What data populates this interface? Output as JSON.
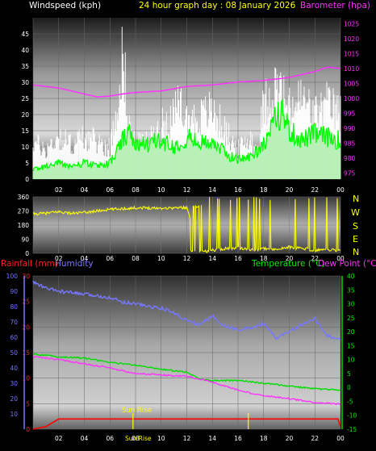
{
  "header": {
    "windspeed_label": "Windspeed (kph)",
    "title": "24 hour graph day : 08 January 2026",
    "barometer_label": "Barometer (hpa)"
  },
  "colors": {
    "background": "#000000",
    "wind_gust": "#ffffff",
    "wind_avg": "#00ff00",
    "wind_fill": "#b8f0b8",
    "barometer": "#ff33ff",
    "direction": "#ffff00",
    "rainfall": "#ff0000",
    "humidity": "#7777ff",
    "temperature": "#00dd00",
    "dewpoint": "#ff33ff",
    "sunrise": "#ffff00"
  },
  "compass": [
    "N",
    "W",
    "S",
    "E",
    "N"
  ],
  "bottom_header": {
    "rainfall_label": "Rainfall (mm)",
    "humidity_label": "Humidity",
    "temperature_label": "Temperature (°C)",
    "dewpoint_label": "Dew Point (°C)"
  },
  "annotations": {
    "sunrise_label": "Sun Rise",
    "sunset_label": "Sun Rise"
  },
  "chart_data": [
    {
      "type": "line",
      "title": "24 hour graph day : 08 January 2026",
      "x_ticks": [
        "02",
        "04",
        "06",
        "08",
        "10",
        "12",
        "14",
        "16",
        "18",
        "20",
        "22",
        "00"
      ],
      "x_range_hours": [
        0,
        24
      ],
      "y_left": {
        "label": "Windspeed (kph)",
        "ticks": [
          0,
          5,
          10,
          15,
          20,
          25,
          30,
          35,
          40,
          45
        ],
        "range": [
          0,
          50
        ]
      },
      "y_right": {
        "label": "Barometer (hpa)",
        "ticks": [
          975,
          980,
          985,
          990,
          995,
          1000,
          1005,
          1010,
          1015,
          1020,
          1025
        ],
        "range": [
          973,
          1027
        ]
      },
      "series": [
        {
          "name": "Windspeed (kph)",
          "role": "gust",
          "x_hours": [
            0,
            1,
            2,
            3,
            4,
            5,
            6,
            6.5,
            7,
            7.5,
            8,
            9,
            10,
            11,
            11.5,
            12,
            13,
            14,
            15,
            16,
            17,
            17.5,
            18,
            19,
            19.5,
            20,
            21,
            22,
            22.5,
            23,
            24
          ],
          "values": [
            14,
            11,
            16,
            13,
            16,
            14,
            12,
            25,
            47,
            20,
            13,
            14,
            20,
            24,
            28,
            22,
            23,
            26,
            18,
            11,
            16,
            10,
            28,
            35,
            31,
            26,
            30,
            24,
            26,
            28,
            24
          ]
        },
        {
          "name": "Windspeed (kph)",
          "role": "average",
          "x_hours": [
            0,
            1,
            2,
            3,
            4,
            5,
            6,
            7,
            7.5,
            8,
            9,
            10,
            11,
            12,
            13,
            14,
            15,
            16,
            17,
            18,
            19,
            19.5,
            20,
            21,
            22,
            23,
            24
          ],
          "values": [
            3,
            4,
            5,
            4,
            5,
            4,
            5,
            12,
            14,
            10,
            11,
            12,
            10,
            13,
            11,
            12,
            8,
            6,
            7,
            11,
            19,
            21,
            15,
            12,
            14,
            13,
            12
          ]
        },
        {
          "name": "Barometer (hpa)",
          "x_hours": [
            0,
            2,
            4,
            5,
            6,
            7,
            8,
            10,
            12,
            14,
            16,
            18,
            20,
            22,
            23,
            24
          ],
          "values": [
            1004.5,
            1003.5,
            1001.5,
            1000.5,
            1000.8,
            1001.5,
            1002,
            1002.5,
            1004,
            1004.5,
            1005.5,
            1006,
            1007,
            1009,
            1010.5,
            1010
          ]
        }
      ]
    },
    {
      "type": "scatter",
      "title": "",
      "x_ticks": [
        "02",
        "04",
        "06",
        "08",
        "10",
        "12",
        "14",
        "16",
        "18",
        "20",
        "22",
        "00"
      ],
      "x_range_hours": [
        0,
        24
      ],
      "y_left": {
        "label": "",
        "ticks": [
          0,
          90,
          180,
          270,
          360
        ],
        "range": [
          0,
          360
        ]
      },
      "y_right_labels": [
        "N",
        "W",
        "S",
        "E",
        "N"
      ],
      "series": [
        {
          "name": "",
          "x_hours": [
            0,
            1,
            2,
            3,
            4,
            5,
            6,
            7,
            8,
            9,
            10,
            11,
            12,
            13,
            14,
            15,
            16,
            17,
            18,
            19,
            20,
            21,
            22,
            23,
            24
          ],
          "values": [
            250,
            255,
            265,
            255,
            260,
            270,
            280,
            285,
            290,
            290,
            288,
            290,
            292,
            5,
            20,
            30,
            35,
            20,
            30,
            25,
            40,
            30,
            20,
            25,
            15
          ]
        }
      ]
    },
    {
      "type": "line",
      "title": "",
      "x_ticks": [
        "02",
        "04",
        "06",
        "08",
        "10",
        "12",
        "14",
        "16",
        "18",
        "20",
        "22",
        "00"
      ],
      "x_range_hours": [
        0,
        24
      ],
      "y_left": {
        "label": "Rainfall (mm)",
        "ticks": [
          0,
          5,
          10,
          15,
          20,
          25,
          30
        ],
        "range": [
          0,
          30
        ]
      },
      "y_left_secondary": {
        "label": "Humidity",
        "ticks": [
          10,
          20,
          30,
          40,
          50,
          60,
          70,
          80,
          90,
          100
        ],
        "range": [
          0,
          100
        ]
      },
      "y_right": {
        "label": "Temperature (°C)",
        "ticks": [
          40,
          35,
          30,
          25,
          20,
          15,
          10,
          5,
          0,
          -5,
          -10,
          -15
        ],
        "range": [
          -15,
          40
        ]
      },
      "series": [
        {
          "name": "Humidity",
          "x_hours": [
            0,
            1,
            2,
            4,
            6,
            7,
            8,
            9,
            10,
            11,
            12,
            13,
            14,
            15,
            16,
            17,
            18,
            19,
            20,
            21,
            22,
            23,
            24
          ],
          "values": [
            96,
            92,
            90,
            88,
            86,
            83,
            82,
            80,
            79,
            76,
            71,
            68,
            74,
            67,
            65,
            66,
            69,
            59,
            64,
            68,
            72,
            61,
            58
          ]
        },
        {
          "name": "Temperature (°C)",
          "x_hours": [
            0,
            2,
            4,
            6,
            8,
            10,
            12,
            13,
            14,
            16,
            18,
            20,
            22,
            24
          ],
          "values": [
            12,
            11,
            10.5,
            9,
            8,
            6.5,
            5.5,
            3,
            2.5,
            2.5,
            1.5,
            0.5,
            -0.5,
            -1
          ]
        },
        {
          "name": "Dew Point (°C)",
          "x_hours": [
            0,
            2,
            4,
            6,
            8,
            10,
            12,
            14,
            15,
            16,
            18,
            20,
            22,
            24
          ],
          "values": [
            11,
            10,
            8.5,
            7,
            5,
            4.5,
            4,
            2,
            0.5,
            -1,
            -3,
            -4,
            -5.5,
            -6
          ]
        },
        {
          "name": "Rainfall (mm)",
          "x_hours": [
            0,
            1,
            2,
            3,
            4,
            23,
            23.8,
            24
          ],
          "values": [
            0,
            0.5,
            2,
            2,
            2,
            2,
            2,
            0.5
          ]
        }
      ],
      "markers": [
        {
          "label": "Sun Rise",
          "x_hours": 7.8
        },
        {
          "label": "Sun Rise",
          "x_hours": 16.8
        }
      ]
    }
  ]
}
